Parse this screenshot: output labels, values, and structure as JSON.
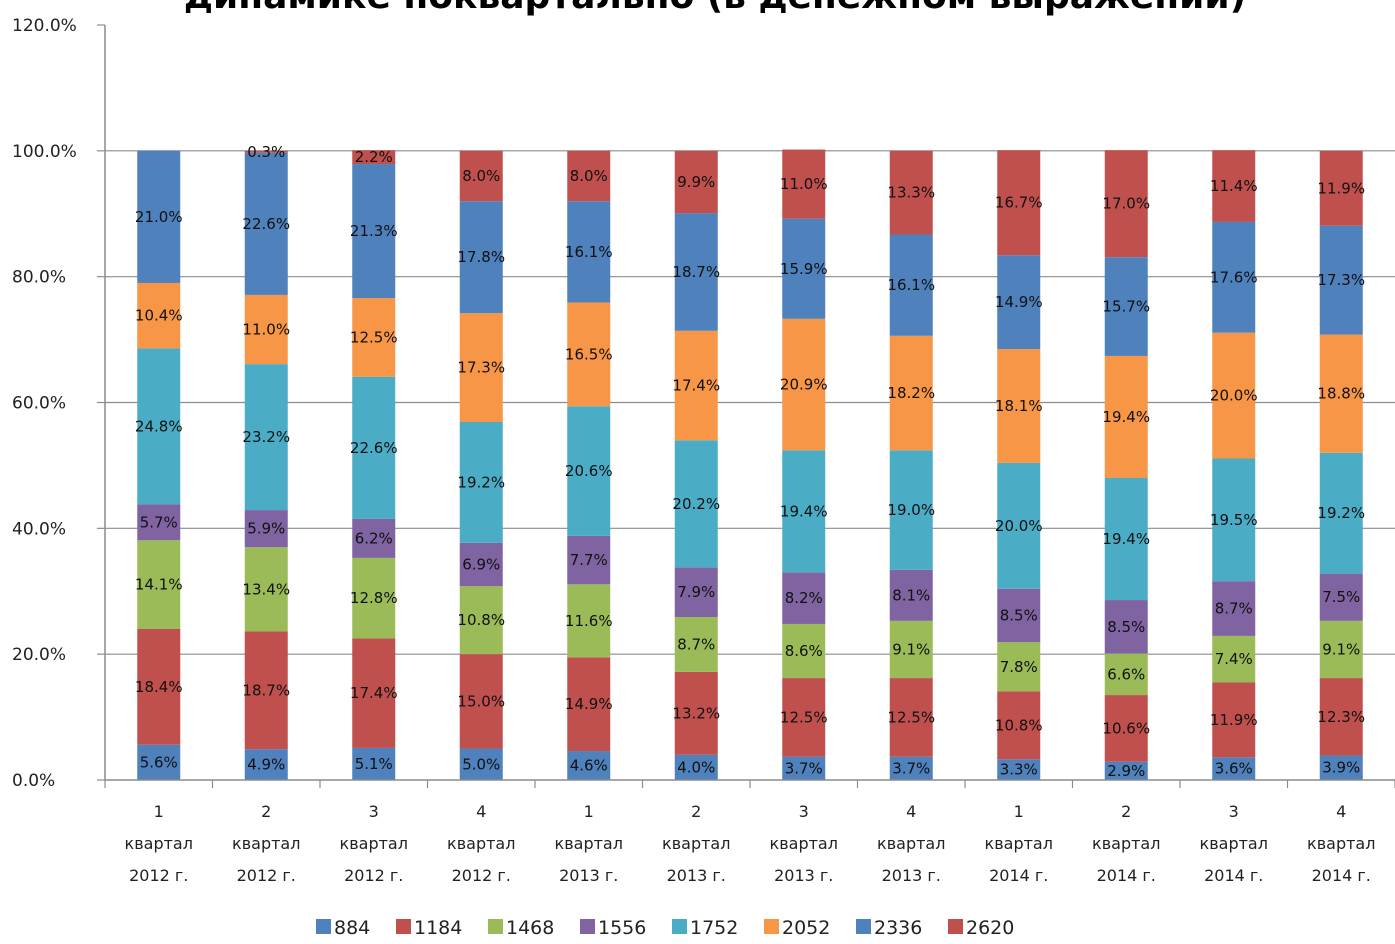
{
  "chart_data": {
    "type": "bar",
    "stacked": true,
    "title": "динамике поквартально (в денежном выражении)",
    "xlabel": "",
    "ylabel": "",
    "ylim": [
      0,
      120
    ],
    "y_ticks": [
      "0.0%",
      "20.0%",
      "40.0%",
      "60.0%",
      "80.0%",
      "100.0%",
      "120.0%"
    ],
    "grid": true,
    "legend_position": "bottom",
    "categories": [
      [
        "1",
        "квартал",
        "2012 г."
      ],
      [
        "2",
        "квартал",
        "2012 г."
      ],
      [
        "3",
        "квартал",
        "2012 г."
      ],
      [
        "4",
        "квартал",
        "2012 г."
      ],
      [
        "1",
        "квартал",
        "2013 г."
      ],
      [
        "2",
        "квартал",
        "2013 г."
      ],
      [
        "3",
        "квартал",
        "2013 г."
      ],
      [
        "4",
        "квартал",
        "2013 г."
      ],
      [
        "1",
        "квартал",
        "2014 г."
      ],
      [
        "2",
        "квартал",
        "2014 г."
      ],
      [
        "3",
        "квартал",
        "2014 г."
      ],
      [
        "4",
        "квартал",
        "2014 г."
      ]
    ],
    "series": [
      {
        "name": "884",
        "color": "#4f81bd",
        "values": [
          5.6,
          4.9,
          5.1,
          5.0,
          4.6,
          4.0,
          3.7,
          3.7,
          3.3,
          2.9,
          3.6,
          3.9
        ]
      },
      {
        "name": "1184",
        "color": "#c0504d",
        "values": [
          18.4,
          18.7,
          17.4,
          15.0,
          14.9,
          13.2,
          12.5,
          12.5,
          10.8,
          10.6,
          11.9,
          12.3
        ]
      },
      {
        "name": "1468",
        "color": "#9bbb59",
        "values": [
          14.1,
          13.4,
          12.8,
          10.8,
          11.6,
          8.7,
          8.6,
          9.1,
          7.8,
          6.6,
          7.4,
          9.1
        ]
      },
      {
        "name": "1556",
        "color": "#8064a2",
        "values": [
          5.7,
          5.9,
          6.2,
          6.9,
          7.7,
          7.9,
          8.2,
          8.1,
          8.5,
          8.5,
          8.7,
          7.5
        ]
      },
      {
        "name": "1752",
        "color": "#4bacc6",
        "values": [
          24.8,
          23.2,
          22.6,
          19.2,
          20.6,
          20.2,
          19.4,
          19.0,
          20.0,
          19.4,
          19.5,
          19.2
        ]
      },
      {
        "name": "2052",
        "color": "#f79646",
        "values": [
          10.4,
          11.0,
          12.5,
          17.3,
          16.5,
          17.4,
          20.9,
          18.2,
          18.1,
          19.4,
          20.0,
          18.8
        ]
      },
      {
        "name": "2336",
        "color": "#4f81bd",
        "values": [
          21.0,
          22.6,
          21.3,
          17.8,
          16.1,
          18.7,
          15.9,
          16.1,
          14.9,
          15.7,
          17.6,
          17.3
        ]
      },
      {
        "name": "2620",
        "color": "#c0504d",
        "values": [
          0.0,
          0.3,
          2.2,
          8.0,
          8.0,
          9.9,
          11.0,
          13.3,
          16.7,
          17.0,
          11.4,
          11.9
        ]
      }
    ]
  }
}
